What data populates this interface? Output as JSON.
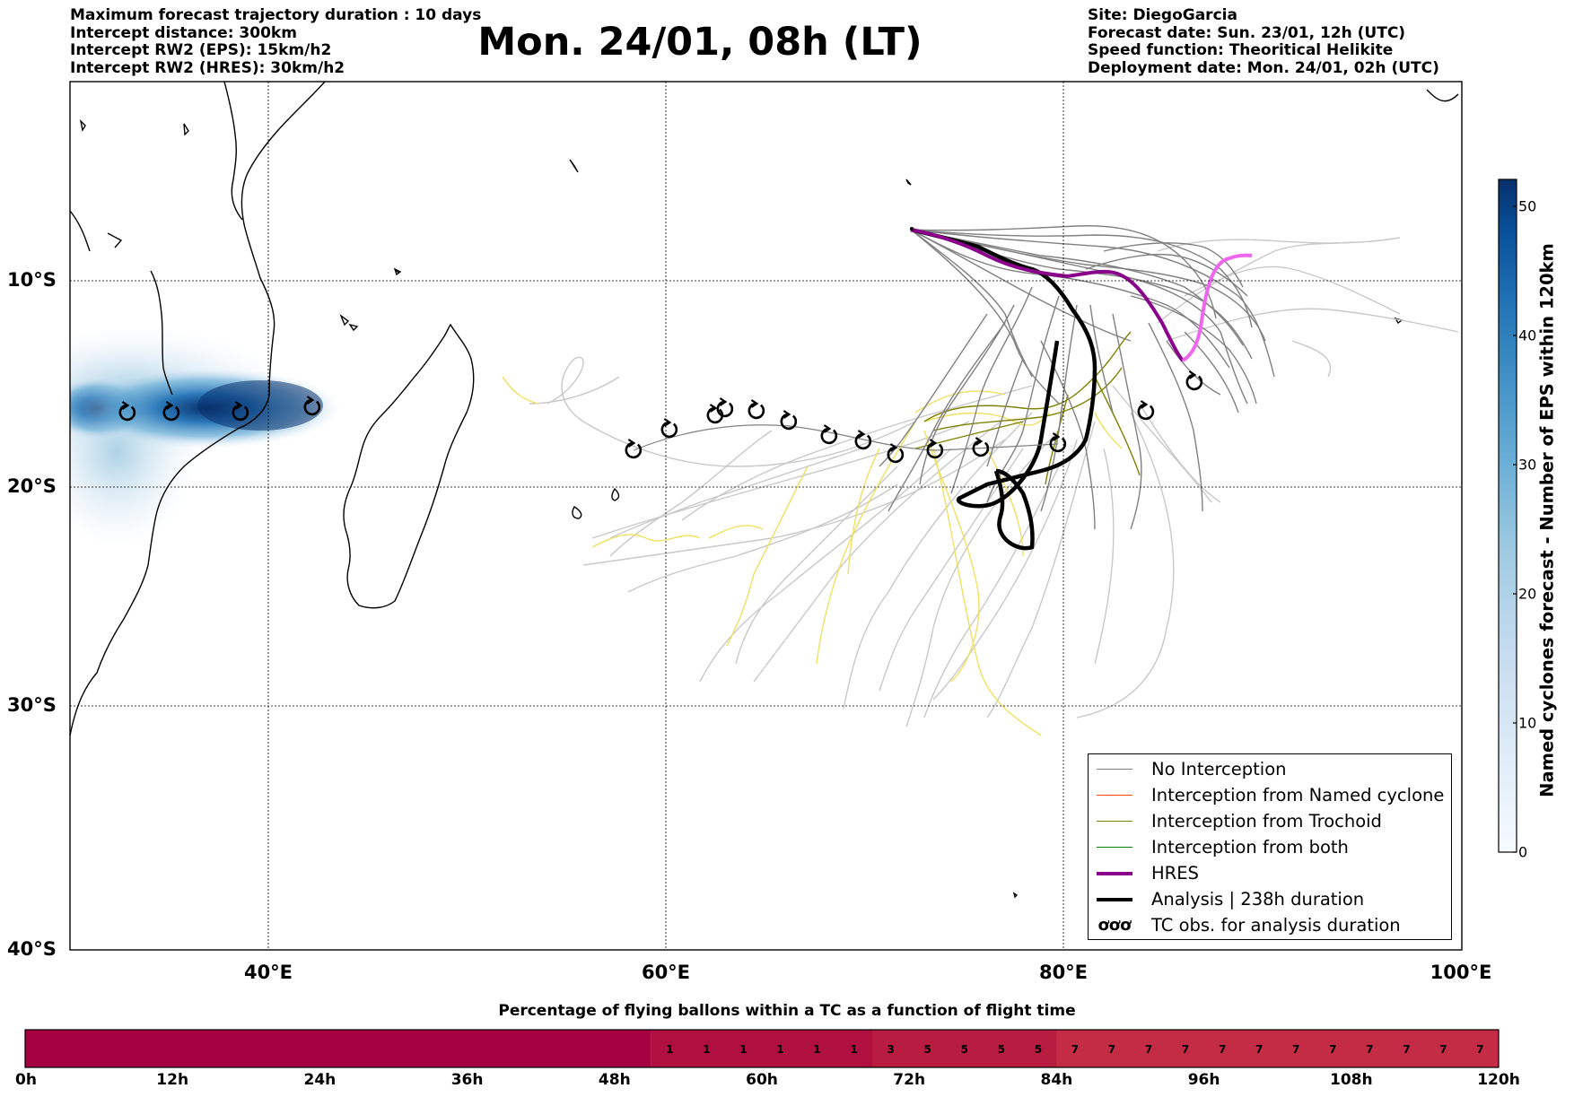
{
  "header_left": [
    "Maximum forecast trajectory duration : 10 days",
    "Intercept distance: 300km",
    "Intercept RW2 (EPS):  15km/h2",
    "Intercept RW2 (HRES): 30km/h2"
  ],
  "title": "Mon. 24/01, 08h (LT)",
  "header_right": [
    "Site: DiegoGarcia",
    "Forecast date: Sun. 23/01, 12h (UTC)",
    "Speed function: Theoritical Helikite",
    "Deployment date: Mon. 24/01, 02h (UTC)"
  ],
  "map": {
    "lon_labels": [
      "40°E",
      "60°E",
      "80°E",
      "100°E"
    ],
    "lat_labels": [
      "10°S",
      "20°S",
      "30°S",
      "40°S"
    ]
  },
  "legend": [
    {
      "label": "No Interception",
      "color": "#808080",
      "width": 1.4,
      "kind": "line"
    },
    {
      "label": "Interception from Named cyclone",
      "color": "#ff4500",
      "width": 1.4,
      "kind": "line"
    },
    {
      "label": "Interception from Trochoid",
      "color": "#808000",
      "width": 1.4,
      "kind": "line"
    },
    {
      "label": "Interception from both",
      "color": "#008000",
      "width": 1.4,
      "kind": "line"
    },
    {
      "label": "HRES",
      "color": "#8b008b",
      "width": 4,
      "kind": "line"
    },
    {
      "label": "Analysis | 238h duration",
      "color": "#000000",
      "width": 4,
      "kind": "line"
    },
    {
      "label": "TC obs. for analysis duration",
      "color": "#000000",
      "width": 2,
      "kind": "tc",
      "glyph": "ơơơ"
    }
  ],
  "colorbar": {
    "label": "Named cyclones forecast - Number of EPS within 120km",
    "ticks": [
      "0",
      "10",
      "20",
      "30",
      "40",
      "50"
    ],
    "colors": [
      "#f7fbff",
      "#deebf7",
      "#c6dbef",
      "#9ecae1",
      "#6baed6",
      "#4292c6",
      "#2171b5",
      "#08519c",
      "#08306b"
    ]
  },
  "bottom": {
    "title": "Percentage of flying ballons within a TC as a function of flight time",
    "time_labels": [
      "0h",
      "12h",
      "24h",
      "36h",
      "48h",
      "60h",
      "72h",
      "84h",
      "96h",
      "108h",
      "120h"
    ],
    "percent_values": [
      "1",
      "1",
      "1",
      "1",
      "1",
      "1",
      "3",
      "5",
      "5",
      "5",
      "5",
      "7",
      "7",
      "7",
      "7",
      "7",
      "7",
      "7",
      "7",
      "7",
      "7",
      "7",
      "7"
    ],
    "colors": {
      "zero": "#a50040",
      "low": "#b0103f",
      "mid": "#b81c40",
      "high": "#c42b44"
    }
  },
  "styles": {
    "grey_track": "#808080",
    "light_track": "#c8c8c8",
    "yellow_track": "#f0e060",
    "olive_track": "#808000",
    "hres_color": "#8b008b",
    "hres_tail": "#ee66ee",
    "analysis_color": "#000000"
  }
}
